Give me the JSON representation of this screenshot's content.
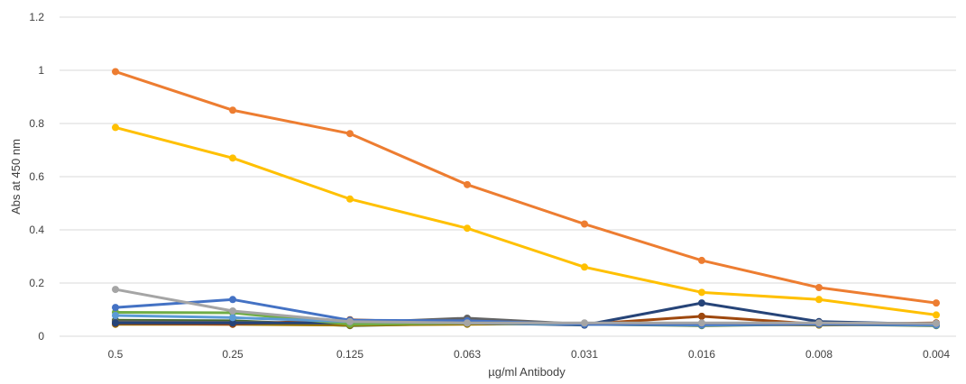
{
  "chart_data": {
    "type": "line",
    "title": "",
    "xlabel": "µg/ml Antibody",
    "ylabel": "Abs at 450 nm",
    "categories": [
      "0.5",
      "0.25",
      "0.125",
      "0.063",
      "0.031",
      "0.016",
      "0.008",
      "0.004"
    ],
    "ylim": [
      0,
      1.2
    ],
    "yticks": [
      "0",
      "0.2",
      "0.4",
      "0.6",
      "0.8",
      "1",
      "1.2"
    ],
    "ytick_values": [
      0,
      0.2,
      0.4,
      0.6,
      0.8,
      1.0,
      1.2
    ],
    "grid": true,
    "legend": "none",
    "series": [
      {
        "color": "#ed7d31",
        "values": [
          0.995,
          0.85,
          0.762,
          0.57,
          0.422,
          0.285,
          0.183,
          0.125
        ]
      },
      {
        "color": "#ffc000",
        "values": [
          0.785,
          0.67,
          0.516,
          0.406,
          0.26,
          0.165,
          0.138,
          0.08
        ]
      },
      {
        "color": "#a5a5a5",
        "values": [
          0.176,
          0.095,
          0.055,
          0.05,
          0.05,
          0.05,
          0.05,
          0.048
        ]
      },
      {
        "color": "#4472c4",
        "values": [
          0.108,
          0.138,
          0.06,
          0.058,
          0.045,
          0.045,
          0.045,
          0.045
        ]
      },
      {
        "color": "#5b9bd5",
        "values": [
          0.078,
          0.07,
          0.055,
          0.05,
          0.045,
          0.042,
          0.045,
          0.042
        ]
      },
      {
        "color": "#70ad47",
        "values": [
          0.09,
          0.088,
          0.045,
          0.05,
          0.045,
          0.045,
          0.045,
          0.045
        ]
      },
      {
        "color": "#264478",
        "values": [
          0.05,
          0.05,
          0.05,
          0.05,
          0.042,
          0.125,
          0.055,
          0.045
        ]
      },
      {
        "color": "#9e480e",
        "values": [
          0.048,
          0.045,
          0.062,
          0.05,
          0.045,
          0.075,
          0.045,
          0.05
        ]
      },
      {
        "color": "#636363",
        "values": [
          0.055,
          0.052,
          0.05,
          0.068,
          0.045,
          0.045,
          0.05,
          0.045
        ]
      },
      {
        "color": "#997300",
        "values": [
          0.045,
          0.045,
          0.042,
          0.045,
          0.048,
          0.045,
          0.042,
          0.045
        ]
      },
      {
        "color": "#43682b",
        "values": [
          0.06,
          0.058,
          0.04,
          0.048,
          0.045,
          0.04,
          0.045,
          0.04
        ]
      }
    ]
  }
}
